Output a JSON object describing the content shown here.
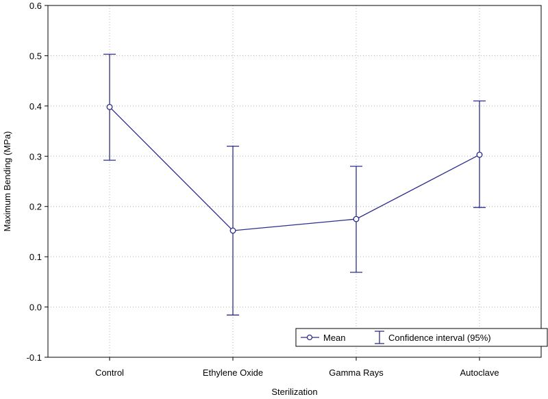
{
  "chart_data": {
    "type": "line",
    "xlabel": "Sterilization",
    "ylabel": "Maximum Bending (MPa)",
    "categories": [
      "Control",
      "Ethylene Oxide",
      "Gamma Rays",
      "Autoclave"
    ],
    "series": [
      {
        "name": "Mean",
        "values": [
          0.398,
          0.152,
          0.175,
          0.303
        ],
        "ci_low": [
          0.292,
          -0.016,
          0.069,
          0.198
        ],
        "ci_high": [
          0.503,
          0.32,
          0.28,
          0.41
        ]
      }
    ],
    "ylim": [
      -0.1,
      0.6
    ],
    "yticks": [
      "-0.1",
      "0.0",
      "0.1",
      "0.2",
      "0.3",
      "0.4",
      "0.5",
      "0.6"
    ],
    "ytick_values": [
      -0.1,
      0.0,
      0.1,
      0.2,
      0.3,
      0.4,
      0.5,
      0.6
    ],
    "grid": true,
    "legend": {
      "placement": "bottom-right",
      "entries": [
        "Mean",
        "Confidence interval (95%)"
      ]
    },
    "colors": {
      "series": "#2b2b8c",
      "grid": "#b0b0b0",
      "axis": "#000000"
    }
  }
}
